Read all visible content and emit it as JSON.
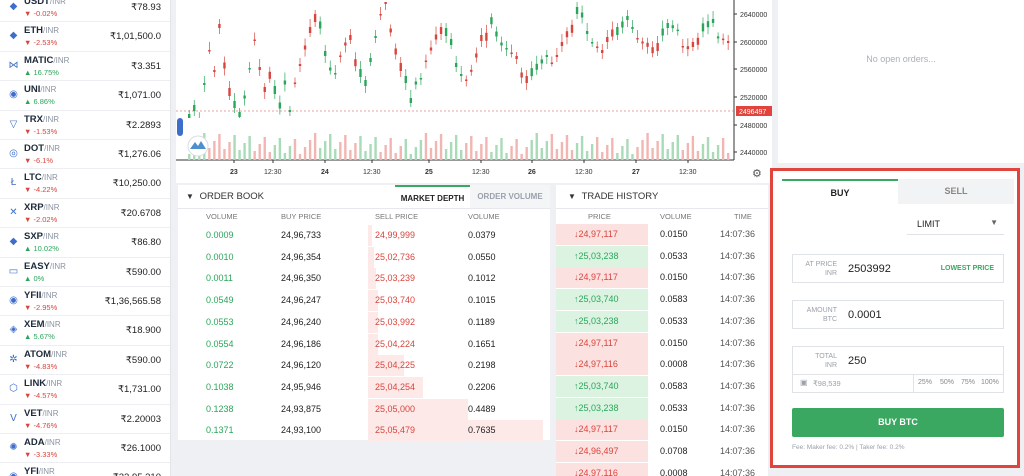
{
  "markets": [
    {
      "symbol": "USDT",
      "pair": "/INR",
      "change": "-0.02%",
      "dir": "down",
      "price": "₹78.93",
      "icon": "tether-icon",
      "glyph": "◆"
    },
    {
      "symbol": "ETH",
      "pair": "/INR",
      "change": "-2.53%",
      "dir": "down",
      "price": "₹1,01,500.0",
      "icon": "ethereum-icon",
      "glyph": "◆"
    },
    {
      "symbol": "MATIC",
      "pair": "/INR",
      "change": "16.75%",
      "dir": "up",
      "price": "₹3.351",
      "icon": "matic-icon",
      "glyph": "⋈"
    },
    {
      "symbol": "UNI",
      "pair": "/INR",
      "change": "6.86%",
      "dir": "up",
      "price": "₹1,071.00",
      "icon": "uniswap-icon",
      "glyph": "◉"
    },
    {
      "symbol": "TRX",
      "pair": "/INR",
      "change": "-1.53%",
      "dir": "down",
      "price": "₹2.2893",
      "icon": "tron-icon",
      "glyph": "▽"
    },
    {
      "symbol": "DOT",
      "pair": "/INR",
      "change": "-6.1%",
      "dir": "down",
      "price": "₹1,276.06",
      "icon": "polkadot-icon",
      "glyph": "◎"
    },
    {
      "symbol": "LTC",
      "pair": "/INR",
      "change": "-4.22%",
      "dir": "down",
      "price": "₹10,250.00",
      "icon": "litecoin-icon",
      "glyph": "Ł"
    },
    {
      "symbol": "XRP",
      "pair": "/INR",
      "change": "-2.02%",
      "dir": "down",
      "price": "₹20.6708",
      "icon": "xrp-icon",
      "glyph": "✕"
    },
    {
      "symbol": "SXP",
      "pair": "/INR",
      "change": "10.02%",
      "dir": "up",
      "price": "₹86.80",
      "icon": "swipe-icon",
      "glyph": "◆"
    },
    {
      "symbol": "EASY",
      "pair": "/INR",
      "change": "0%",
      "dir": "up",
      "price": "₹590.00",
      "icon": "easy-icon",
      "glyph": "▭"
    },
    {
      "symbol": "YFII",
      "pair": "/INR",
      "change": "-2.95%",
      "dir": "down",
      "price": "₹1,36,565.58",
      "icon": "yfii-icon",
      "glyph": "◉"
    },
    {
      "symbol": "XEM",
      "pair": "/INR",
      "change": "5.67%",
      "dir": "up",
      "price": "₹18.900",
      "icon": "nem-icon",
      "glyph": "◈"
    },
    {
      "symbol": "ATOM",
      "pair": "/INR",
      "change": "-4.83%",
      "dir": "down",
      "price": "₹590.00",
      "icon": "cosmos-icon",
      "glyph": "✲"
    },
    {
      "symbol": "LINK",
      "pair": "/INR",
      "change": "-4.57%",
      "dir": "down",
      "price": "₹1,731.00",
      "icon": "chainlink-icon",
      "glyph": "⬡"
    },
    {
      "symbol": "VET",
      "pair": "/INR",
      "change": "-4.76%",
      "dir": "down",
      "price": "₹2.20003",
      "icon": "vechain-icon",
      "glyph": "V"
    },
    {
      "symbol": "ADA",
      "pair": "/INR",
      "change": "-3.33%",
      "dir": "down",
      "price": "₹26.1000",
      "icon": "cardano-icon",
      "glyph": "✺"
    },
    {
      "symbol": "YFI",
      "pair": "/INR",
      "change": "",
      "dir": "down",
      "price": "₹22,95,310",
      "icon": "yfi-icon",
      "glyph": "◉"
    }
  ],
  "chart": {
    "price_axis": [
      "2640000",
      "2600000",
      "2560000",
      "2520000",
      "2480000",
      "2440000"
    ],
    "current_price": "2496497",
    "time_axis": [
      "23",
      "12:30",
      "24",
      "12:30",
      "25",
      "12:30",
      "26",
      "12:30",
      "27",
      "12:30"
    ]
  },
  "order_book": {
    "title": "ORDER BOOK",
    "tabs": [
      "MARKET DEPTH",
      "ORDER VOLUME"
    ],
    "headers": [
      "VOLUME",
      "BUY PRICE",
      "SELL PRICE",
      "VOLUME"
    ],
    "rows": [
      [
        "0.0009",
        "24,96,733",
        "24,99,999",
        "0.0379"
      ],
      [
        "0.0010",
        "24,96,354",
        "25,02,736",
        "0.0550"
      ],
      [
        "0.0011",
        "24,96,350",
        "25,03,239",
        "0.1012"
      ],
      [
        "0.0549",
        "24,96,247",
        "25,03,740",
        "0.1015"
      ],
      [
        "0.0553",
        "24,96,240",
        "25,03,992",
        "0.1189"
      ],
      [
        "0.0554",
        "24,96,186",
        "25,04,224",
        "0.1651"
      ],
      [
        "0.0722",
        "24,96,120",
        "25,04,225",
        "0.2198"
      ],
      [
        "0.1038",
        "24,95,946",
        "25,04,254",
        "0.2206"
      ],
      [
        "0.1238",
        "24,93,875",
        "25,05,000",
        "0.4489"
      ],
      [
        "0.1371",
        "24,93,100",
        "25,05,479",
        "0.7635"
      ]
    ]
  },
  "trade_history": {
    "title": "TRADE HISTORY",
    "headers": [
      "PRICE",
      "VOLUME",
      "TIME"
    ],
    "rows": [
      {
        "dir": "down",
        "price": "24,97,117",
        "volume": "0.0150",
        "time": "14:07:36"
      },
      {
        "dir": "up",
        "price": "25,03,238",
        "volume": "0.0533",
        "time": "14:07:36"
      },
      {
        "dir": "down",
        "price": "24,97,117",
        "volume": "0.0150",
        "time": "14:07:36"
      },
      {
        "dir": "up",
        "price": "25,03,740",
        "volume": "0.0583",
        "time": "14:07:36"
      },
      {
        "dir": "up",
        "price": "25,03,238",
        "volume": "0.0533",
        "time": "14:07:36"
      },
      {
        "dir": "down",
        "price": "24,97,117",
        "volume": "0.0150",
        "time": "14:07:36"
      },
      {
        "dir": "down",
        "price": "24,97,116",
        "volume": "0.0008",
        "time": "14:07:36"
      },
      {
        "dir": "up",
        "price": "25,03,740",
        "volume": "0.0583",
        "time": "14:07:36"
      },
      {
        "dir": "up",
        "price": "25,03,238",
        "volume": "0.0533",
        "time": "14:07:36"
      },
      {
        "dir": "down",
        "price": "24,97,117",
        "volume": "0.0150",
        "time": "14:07:36"
      },
      {
        "dir": "down",
        "price": "24,96,497",
        "volume": "0.0708",
        "time": "14:07:36"
      },
      {
        "dir": "down",
        "price": "24,97,116",
        "volume": "0.0008",
        "time": "14:07:36"
      }
    ]
  },
  "open_orders": {
    "empty_message": "No open orders..."
  },
  "trade_form": {
    "tabs": {
      "buy": "BUY",
      "sell": "SELL"
    },
    "order_type": "LIMIT",
    "at_price": {
      "label_line1": "AT PRICE",
      "label_line2": "INR",
      "value": "2503992",
      "link": "LOWEST PRICE"
    },
    "amount": {
      "label_line1": "AMOUNT",
      "label_line2": "BTC",
      "value": "0.0001"
    },
    "total": {
      "label_line1": "TOTAL",
      "label_line2": "INR",
      "value": "250"
    },
    "balance": "₹98,539",
    "percents": [
      "25%",
      "50%",
      "75%",
      "100%"
    ],
    "submit": "BUY BTC",
    "fee": "Fee: Maker fee: 0.2% | Taker fee: 0.2%"
  },
  "colors": {
    "green": "#2aa65a",
    "red": "#d8453e",
    "accent": "#3aa860",
    "highlight": "#e0443c"
  }
}
